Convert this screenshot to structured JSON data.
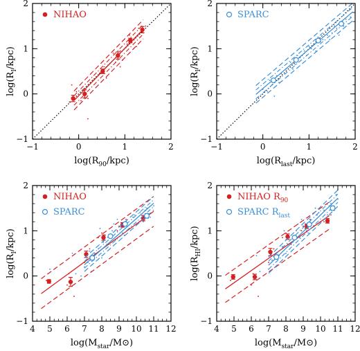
{
  "colors": {
    "nihao": "#d42020",
    "sparc": "#3a8fd8",
    "ref": "#000000"
  },
  "chart_data": [
    {
      "type": "scatter",
      "panel": "top-left",
      "xlabel_main": "log(R",
      "xlabel_sub": "90",
      "xlabel_tail": "/kpc)",
      "ylabel_main": "log(R",
      "ylabel_sub": "I",
      "ylabel_tail": "/kpc)",
      "xlim": [
        -1,
        2
      ],
      "ylim": [
        -1,
        2
      ],
      "xticks": [
        -1,
        0,
        1,
        2
      ],
      "yticks": [
        -1,
        0,
        1,
        2
      ],
      "xtick_labels": [
        "−1",
        "0",
        "1",
        "2"
      ],
      "ytick_labels": [
        "−1",
        "0",
        "1",
        "2"
      ],
      "legend": [
        {
          "marker": "filled",
          "color": "#d42020",
          "label": "NIHAO",
          "sub": ""
        }
      ],
      "one_to_one": true,
      "series": [
        {
          "color": "#d42020",
          "marker": "filled",
          "x": [
            -0.12,
            0.13,
            0.52,
            0.85,
            1.12,
            1.38
          ],
          "y": [
            -0.1,
            0.0,
            0.5,
            0.85,
            1.18,
            1.42
          ],
          "yerr": [
            0.07,
            0.09,
            0.05,
            0.08,
            0.05,
            0.07
          ],
          "fit": {
            "x0": -0.1,
            "x1": 1.4,
            "slope": 1.05,
            "intercept": -0.04,
            "scatter": 0.14,
            "dash_inner": true
          }
        }
      ],
      "scatter_points": {
        "color": "#d42020",
        "x": [
          -0.2,
          -0.15,
          -0.05,
          0.05,
          0.1,
          0.2,
          0.3,
          0.45,
          0.55,
          0.6,
          0.75,
          0.8,
          0.9,
          0.95,
          1.05,
          1.1,
          1.2,
          1.25,
          1.3,
          1.4,
          1.45,
          0.2,
          0.9
        ],
        "y": [
          -0.18,
          0.2,
          0.05,
          -0.15,
          0.1,
          -0.55,
          0.3,
          0.45,
          0.6,
          0.35,
          0.9,
          0.7,
          0.95,
          0.75,
          1.1,
          1.3,
          1.2,
          1.05,
          1.45,
          1.35,
          1.5,
          -0.1,
          0.6
        ]
      }
    },
    {
      "type": "scatter",
      "panel": "top-right",
      "xlabel_main": "log(R",
      "xlabel_sub": "last",
      "xlabel_tail": "/kpc)",
      "ylabel_main": "log(R",
      "ylabel_sub": "I",
      "ylabel_tail": "/kpc)",
      "xlim": [
        -1,
        2
      ],
      "ylim": [
        -1,
        2
      ],
      "xticks": [
        -1,
        0,
        1,
        2
      ],
      "yticks": [
        -1,
        0,
        1,
        2
      ],
      "xtick_labels": [
        "−1",
        "0",
        "1",
        "2"
      ],
      "ytick_labels": [
        "−1",
        "0",
        "1",
        "2"
      ],
      "legend": [
        {
          "marker": "open",
          "color": "#3a8fd8",
          "label": "SPARC",
          "sub": ""
        }
      ],
      "one_to_one": true,
      "series": [
        {
          "color": "#3a8fd8",
          "marker": "open",
          "x": [
            0.23,
            0.72,
            1.2,
            1.7
          ],
          "y": [
            0.3,
            0.75,
            1.18,
            1.55
          ],
          "yerr": [
            0.04,
            0.03,
            0.03,
            0.04
          ],
          "fit": {
            "x0": -0.15,
            "x1": 1.95,
            "slope": 0.87,
            "intercept": 0.12,
            "scatter": 0.13,
            "dash_inner": true
          }
        }
      ],
      "scatter_points": {
        "color": "#3a8fd8",
        "x": [
          0.0,
          0.1,
          0.15,
          0.2,
          0.3,
          0.35,
          0.4,
          0.5,
          0.55,
          0.6,
          0.7,
          0.75,
          0.8,
          0.9,
          0.95,
          1.0,
          1.1,
          1.15,
          1.2,
          1.25,
          1.3,
          1.4,
          1.5,
          1.55,
          1.6,
          1.7,
          1.75,
          1.8,
          1.85,
          1.9,
          0.25,
          0.65,
          1.05,
          1.45,
          1.65
        ],
        "y": [
          0.1,
          0.05,
          0.3,
          0.2,
          0.4,
          0.25,
          0.45,
          0.55,
          0.4,
          0.7,
          0.65,
          0.85,
          0.8,
          0.95,
          0.85,
          1.05,
          1.1,
          0.95,
          1.25,
          1.15,
          1.2,
          1.3,
          1.35,
          1.5,
          1.45,
          1.6,
          1.5,
          1.65,
          1.55,
          1.7,
          -0.05,
          0.55,
          1.0,
          1.2,
          1.3
        ]
      }
    },
    {
      "type": "scatter",
      "panel": "bottom-left",
      "xlabel_main": "log(M",
      "xlabel_sub": "star",
      "xlabel_tail": "/M⊙)",
      "ylabel_main": "log(R",
      "ylabel_sub": "I",
      "ylabel_tail": "/kpc)",
      "xlim": [
        4,
        12
      ],
      "ylim": [
        -1,
        2
      ],
      "xticks": [
        4,
        5,
        6,
        7,
        8,
        9,
        10,
        11,
        12
      ],
      "yticks": [
        -1,
        0,
        1,
        2
      ],
      "xtick_labels": [
        "4",
        "5",
        "6",
        "7",
        "8",
        "9",
        "10",
        "11",
        "12"
      ],
      "ytick_labels": [
        "−1",
        "0",
        "1",
        "2"
      ],
      "legend": [
        {
          "marker": "filled",
          "color": "#d42020",
          "label": "NIHAO",
          "sub": ""
        },
        {
          "marker": "open",
          "color": "#3a8fd8",
          "label": "SPARC",
          "sub": ""
        }
      ],
      "one_to_one": false,
      "series": [
        {
          "color": "#d42020",
          "marker": "filled",
          "x": [
            4.95,
            6.2,
            7.1,
            8.1,
            9.2,
            10.4
          ],
          "y": [
            -0.12,
            -0.13,
            0.48,
            0.85,
            1.13,
            1.28
          ],
          "yerr": [
            0.04,
            0.1,
            0.07,
            0.06,
            0.05,
            0.06
          ],
          "fit": {
            "x0": 4.5,
            "x1": 11.0,
            "slope": 0.28,
            "intercept": -1.65,
            "scatter": 0.22,
            "dash_inner": false
          }
        },
        {
          "color": "#3a8fd8",
          "marker": "open",
          "x": [
            7.45,
            8.5,
            9.35,
            10.6
          ],
          "y": [
            0.4,
            0.88,
            1.15,
            1.33
          ],
          "yerr": [
            0.05,
            0.04,
            0.04,
            0.05
          ],
          "fit": {
            "x0": 7.0,
            "x1": 11.0,
            "slope": 0.34,
            "intercept": -2.13,
            "scatter": 0.1,
            "dash_inner": true
          }
        }
      ],
      "scatter_points": {
        "color": "#3a8fd8",
        "x": [
          7.0,
          7.2,
          7.4,
          7.6,
          7.8,
          8.0,
          8.2,
          8.4,
          8.6,
          8.8,
          9.0,
          9.2,
          9.4,
          9.6,
          9.8,
          10.0,
          10.2,
          10.4,
          10.6,
          10.8,
          11.0,
          7.3,
          8.1,
          8.7,
          9.3,
          9.9,
          10.5,
          6.5,
          6.3,
          5.0,
          6.8,
          7.9,
          8.9
        ],
        "y": [
          0.2,
          0.3,
          0.1,
          0.5,
          0.6,
          0.4,
          0.9,
          0.7,
          1.0,
          0.8,
          1.1,
          0.95,
          1.2,
          1.05,
          1.3,
          1.15,
          1.4,
          1.2,
          1.5,
          1.3,
          1.55,
          0.55,
          0.75,
          1.15,
          0.9,
          1.35,
          1.45,
          0.05,
          0.5,
          0.15,
          0.0,
          1.05,
          1.25
        ]
      }
    },
    {
      "type": "scatter",
      "panel": "bottom-right",
      "xlabel_main": "log(M",
      "xlabel_sub": "star",
      "xlabel_tail": "/M⊙)",
      "ylabel_main": "log(R",
      "ylabel_sub": "HI",
      "ylabel_tail": "/kpc)",
      "xlim": [
        4,
        12
      ],
      "ylim": [
        -1,
        2
      ],
      "xticks": [
        4,
        5,
        6,
        7,
        8,
        9,
        10,
        11,
        12
      ],
      "yticks": [
        -1,
        0,
        1,
        2
      ],
      "xtick_labels": [
        "4",
        "5",
        "6",
        "7",
        "8",
        "9",
        "10",
        "11",
        "12"
      ],
      "ytick_labels": [
        "−1",
        "0",
        "1",
        "2"
      ],
      "legend": [
        {
          "marker": "filled",
          "color": "#d42020",
          "label": "NIHAO",
          "sub": "90",
          "main_sym": "R"
        },
        {
          "marker": "open",
          "color": "#3a8fd8",
          "label": "SPARC",
          "sub": "last",
          "main_sym": "R"
        }
      ],
      "one_to_one": false,
      "series": [
        {
          "color": "#d42020",
          "marker": "filled",
          "x": [
            4.95,
            6.2,
            7.1,
            8.1,
            9.2,
            10.4
          ],
          "y": [
            -0.02,
            -0.02,
            0.53,
            0.87,
            1.1,
            1.22
          ],
          "yerr": [
            0.05,
            0.06,
            0.08,
            0.06,
            0.05,
            0.05
          ],
          "fit": {
            "x0": 4.5,
            "x1": 10.5,
            "slope": 0.27,
            "intercept": -1.5,
            "scatter": 0.2,
            "dash_inner": false
          }
        },
        {
          "color": "#3a8fd8",
          "marker": "open",
          "x": [
            7.45,
            8.5,
            9.35,
            10.7
          ],
          "y": [
            0.42,
            0.85,
            1.14,
            1.5
          ],
          "yerr": [
            0.05,
            0.04,
            0.04,
            0.05
          ],
          "fit": {
            "x0": 7.0,
            "x1": 11.0,
            "slope": 0.37,
            "intercept": -2.35,
            "scatter": 0.12,
            "dash_inner": true
          }
        }
      ],
      "scatter_points": {
        "color": "#3a8fd8",
        "x": [
          7.0,
          7.2,
          7.4,
          7.6,
          7.8,
          8.0,
          8.2,
          8.4,
          8.6,
          8.8,
          9.0,
          9.2,
          9.4,
          9.6,
          9.8,
          10.0,
          10.2,
          10.4,
          10.6,
          10.8,
          11.0,
          7.3,
          8.1,
          8.7,
          9.3,
          9.9,
          10.5,
          6.5,
          6.3,
          10.9,
          8.9,
          7.9,
          9.7
        ],
        "y": [
          0.15,
          0.35,
          0.2,
          0.45,
          0.65,
          0.5,
          0.85,
          0.75,
          1.0,
          0.85,
          1.1,
          1.0,
          1.25,
          1.1,
          1.35,
          1.2,
          1.45,
          1.35,
          1.6,
          1.45,
          1.7,
          0.6,
          0.7,
          1.15,
          0.95,
          1.4,
          1.55,
          0.1,
          0.45,
          1.8,
          1.25,
          1.0,
          1.5
        ]
      }
    }
  ]
}
